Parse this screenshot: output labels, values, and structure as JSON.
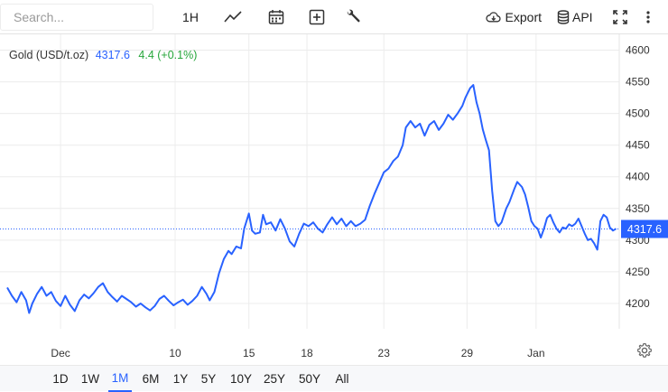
{
  "toolbar": {
    "search_placeholder": "Search...",
    "interval_label": "1H",
    "export_label": "Export",
    "api_label": "API"
  },
  "legend": {
    "name": "Gold (USD/t.oz)",
    "price": "4317.6",
    "change": "4.4 (+0.1%)"
  },
  "colors": {
    "line": "#2962ff",
    "positive": "#26a63a",
    "grid": "#ececec"
  },
  "ranges": [
    "1D",
    "1W",
    "1M",
    "6M",
    "1Y",
    "5Y",
    "10Y",
    "25Y",
    "50Y",
    "All"
  ],
  "active_range": "1M",
  "chart_data": {
    "type": "line",
    "title": "Gold (USD/t.oz)",
    "ylim": [
      4160,
      4625
    ],
    "y_ticks": [
      4200,
      4250,
      4300,
      4350,
      4400,
      4450,
      4500,
      4550,
      4600
    ],
    "x_ticks": [
      {
        "label": "Dec",
        "t": 3.4
      },
      {
        "label": "10",
        "t": 10.7
      },
      {
        "label": "15",
        "t": 15.4
      },
      {
        "label": "18",
        "t": 19.1
      },
      {
        "label": "23",
        "t": 24.0
      },
      {
        "label": "29",
        "t": 29.3
      },
      {
        "label": "Jan",
        "t": 33.7
      }
    ],
    "last_value": "4317.6",
    "grid": true,
    "series": [
      {
        "values": [
          [
            0.0,
            4225
          ],
          [
            0.3,
            4212
          ],
          [
            0.6,
            4202
          ],
          [
            0.9,
            4218
          ],
          [
            1.2,
            4205
          ],
          [
            1.4,
            4185
          ],
          [
            1.6,
            4200
          ],
          [
            1.9,
            4215
          ],
          [
            2.2,
            4226
          ],
          [
            2.5,
            4212
          ],
          [
            2.8,
            4218
          ],
          [
            3.1,
            4204
          ],
          [
            3.4,
            4196
          ],
          [
            3.7,
            4212
          ],
          [
            4.0,
            4198
          ],
          [
            4.3,
            4188
          ],
          [
            4.6,
            4205
          ],
          [
            4.9,
            4214
          ],
          [
            5.2,
            4208
          ],
          [
            5.5,
            4216
          ],
          [
            5.8,
            4226
          ],
          [
            6.1,
            4232
          ],
          [
            6.4,
            4218
          ],
          [
            6.7,
            4210
          ],
          [
            7.0,
            4203
          ],
          [
            7.3,
            4212
          ],
          [
            7.6,
            4207
          ],
          [
            7.9,
            4202
          ],
          [
            8.2,
            4195
          ],
          [
            8.5,
            4200
          ],
          [
            8.8,
            4194
          ],
          [
            9.1,
            4189
          ],
          [
            9.4,
            4196
          ],
          [
            9.7,
            4207
          ],
          [
            10.0,
            4212
          ],
          [
            10.3,
            4204
          ],
          [
            10.6,
            4197
          ],
          [
            10.9,
            4202
          ],
          [
            11.2,
            4206
          ],
          [
            11.5,
            4198
          ],
          [
            11.8,
            4204
          ],
          [
            12.1,
            4212
          ],
          [
            12.4,
            4226
          ],
          [
            12.7,
            4215
          ],
          [
            12.9,
            4205
          ],
          [
            13.2,
            4218
          ],
          [
            13.5,
            4248
          ],
          [
            13.8,
            4270
          ],
          [
            14.1,
            4283
          ],
          [
            14.3,
            4278
          ],
          [
            14.6,
            4290
          ],
          [
            14.9,
            4287
          ],
          [
            15.1,
            4318
          ],
          [
            15.4,
            4342
          ],
          [
            15.6,
            4315
          ],
          [
            15.8,
            4310
          ],
          [
            16.1,
            4312
          ],
          [
            16.3,
            4340
          ],
          [
            16.5,
            4325
          ],
          [
            16.8,
            4328
          ],
          [
            17.1,
            4315
          ],
          [
            17.4,
            4333
          ],
          [
            17.7,
            4318
          ],
          [
            18.0,
            4298
          ],
          [
            18.3,
            4290
          ],
          [
            18.6,
            4310
          ],
          [
            18.9,
            4326
          ],
          [
            19.2,
            4322
          ],
          [
            19.5,
            4328
          ],
          [
            19.8,
            4318
          ],
          [
            20.1,
            4312
          ],
          [
            20.4,
            4325
          ],
          [
            20.7,
            4336
          ],
          [
            21.0,
            4325
          ],
          [
            21.3,
            4334
          ],
          [
            21.6,
            4322
          ],
          [
            21.9,
            4330
          ],
          [
            22.2,
            4322
          ],
          [
            22.5,
            4326
          ],
          [
            22.8,
            4332
          ],
          [
            23.1,
            4354
          ],
          [
            23.4,
            4373
          ],
          [
            23.7,
            4390
          ],
          [
            24.0,
            4407
          ],
          [
            24.3,
            4413
          ],
          [
            24.6,
            4425
          ],
          [
            24.9,
            4432
          ],
          [
            25.2,
            4450
          ],
          [
            25.4,
            4478
          ],
          [
            25.7,
            4488
          ],
          [
            26.0,
            4478
          ],
          [
            26.3,
            4484
          ],
          [
            26.6,
            4465
          ],
          [
            26.9,
            4482
          ],
          [
            27.2,
            4488
          ],
          [
            27.5,
            4474
          ],
          [
            27.8,
            4484
          ],
          [
            28.1,
            4498
          ],
          [
            28.4,
            4490
          ],
          [
            28.7,
            4500
          ],
          [
            29.0,
            4512
          ],
          [
            29.2,
            4525
          ],
          [
            29.5,
            4540
          ],
          [
            29.7,
            4545
          ],
          [
            29.9,
            4518
          ],
          [
            30.1,
            4500
          ],
          [
            30.3,
            4475
          ],
          [
            30.5,
            4458
          ],
          [
            30.7,
            4442
          ],
          [
            30.9,
            4378
          ],
          [
            31.1,
            4330
          ],
          [
            31.3,
            4322
          ],
          [
            31.5,
            4328
          ],
          [
            31.8,
            4350
          ],
          [
            32.0,
            4360
          ],
          [
            32.3,
            4380
          ],
          [
            32.5,
            4392
          ],
          [
            32.8,
            4384
          ],
          [
            33.0,
            4372
          ],
          [
            33.2,
            4352
          ],
          [
            33.4,
            4330
          ],
          [
            33.6,
            4322
          ],
          [
            33.8,
            4318
          ],
          [
            34.0,
            4304
          ],
          [
            34.2,
            4318
          ],
          [
            34.4,
            4335
          ],
          [
            34.6,
            4340
          ],
          [
            34.8,
            4328
          ],
          [
            35.0,
            4318
          ],
          [
            35.2,
            4312
          ],
          [
            35.4,
            4320
          ],
          [
            35.6,
            4318
          ],
          [
            35.8,
            4325
          ],
          [
            36.0,
            4322
          ],
          [
            36.2,
            4326
          ],
          [
            36.4,
            4334
          ],
          [
            36.6,
            4322
          ],
          [
            36.8,
            4310
          ],
          [
            37.0,
            4300
          ],
          [
            37.2,
            4302
          ],
          [
            37.4,
            4295
          ],
          [
            37.6,
            4285
          ],
          [
            37.8,
            4330
          ],
          [
            38.0,
            4340
          ],
          [
            38.2,
            4336
          ],
          [
            38.4,
            4320
          ],
          [
            38.6,
            4315
          ],
          [
            38.8,
            4318
          ]
        ]
      }
    ]
  }
}
